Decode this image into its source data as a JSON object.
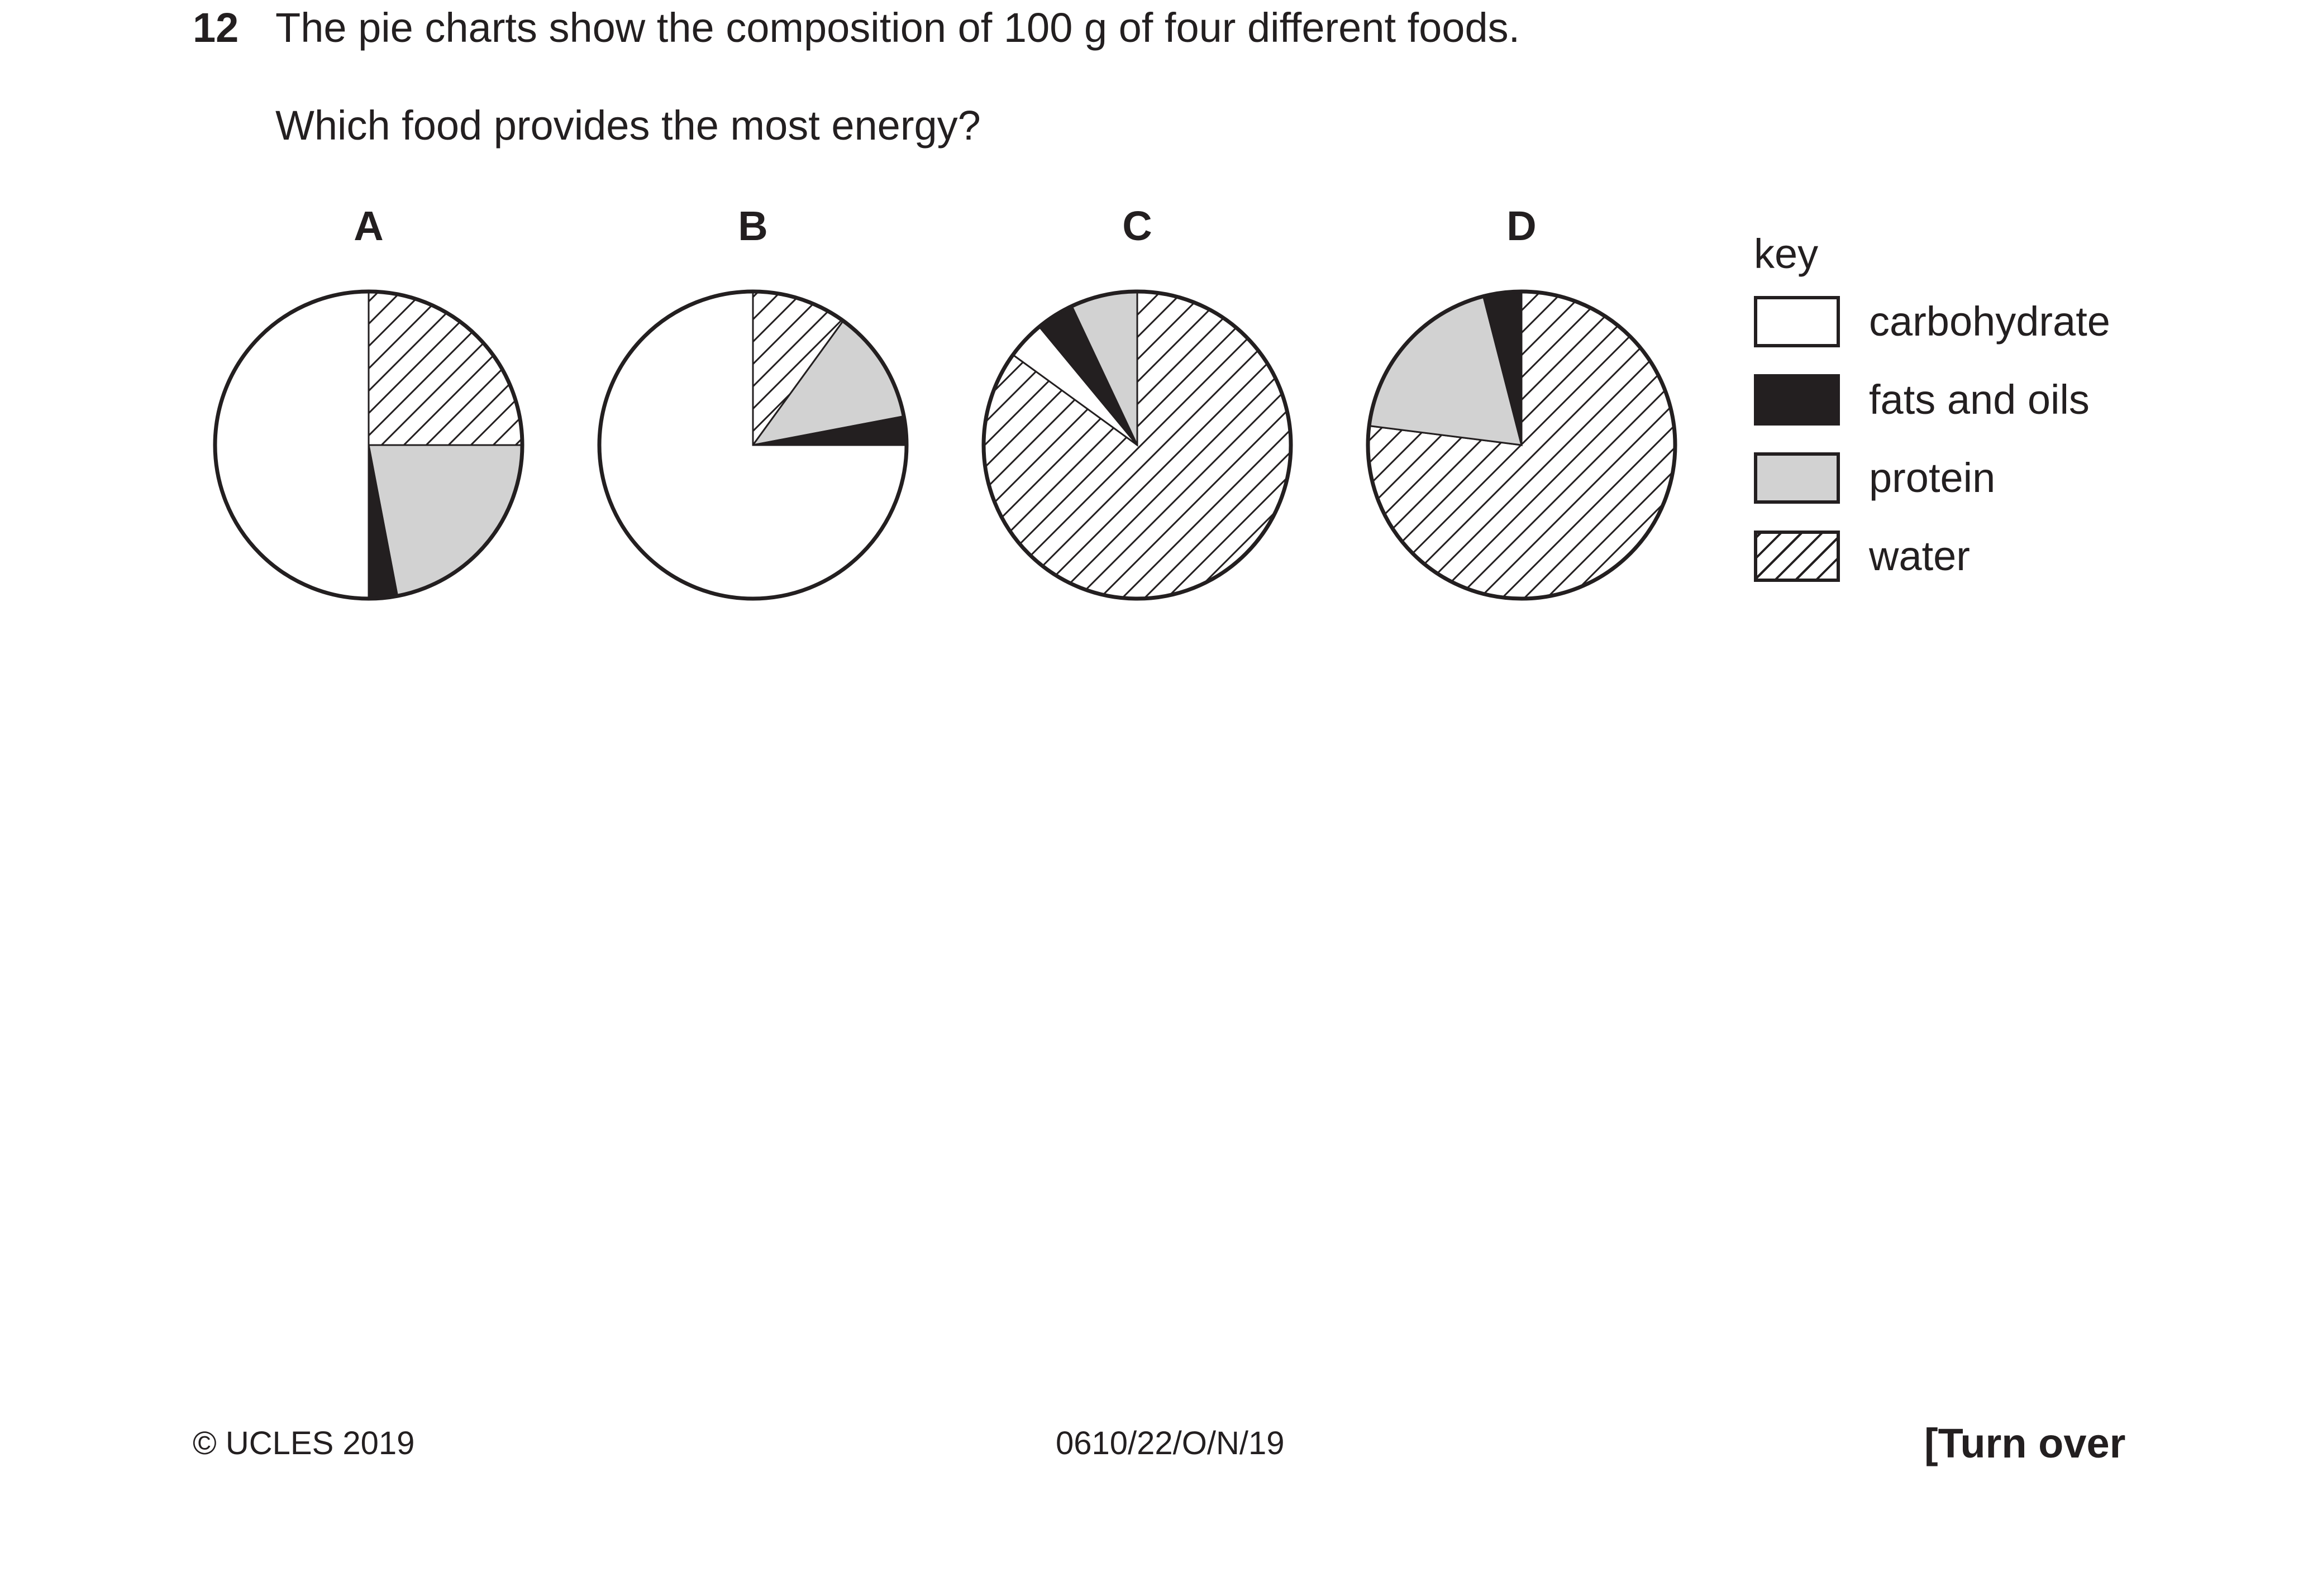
{
  "question": {
    "number": "12",
    "text": "The pie charts show the composition of 100 g of four different foods.",
    "prompt": "Which food provides the most energy?"
  },
  "key": {
    "title": "key",
    "items": [
      {
        "label": "carbohydrate",
        "fill": "#ffffff"
      },
      {
        "label": "fats and oils",
        "fill": "#231f20"
      },
      {
        "label": "protein",
        "fill": "#d2d2d2"
      },
      {
        "label": "water",
        "fill": "hatched"
      }
    ]
  },
  "chart_data": [
    {
      "type": "pie",
      "title": "A",
      "categories": [
        "water",
        "protein",
        "fats and oils",
        "carbohydrate"
      ],
      "values": [
        25,
        22,
        3,
        50
      ]
    },
    {
      "type": "pie",
      "title": "B",
      "categories": [
        "water",
        "protein",
        "fats and oils",
        "carbohydrate"
      ],
      "values": [
        10,
        12,
        3,
        75
      ]
    },
    {
      "type": "pie",
      "title": "C",
      "categories": [
        "water",
        "carbohydrate",
        "fats and oils",
        "protein"
      ],
      "values": [
        85,
        4,
        4,
        7
      ]
    },
    {
      "type": "pie",
      "title": "D",
      "categories": [
        "water",
        "protein",
        "fats and oils"
      ],
      "values": [
        77,
        19,
        4
      ]
    }
  ],
  "footer": {
    "copyright": "© UCLES 2019",
    "code": "0610/22/O/N/19",
    "turn": "[Turn over"
  }
}
